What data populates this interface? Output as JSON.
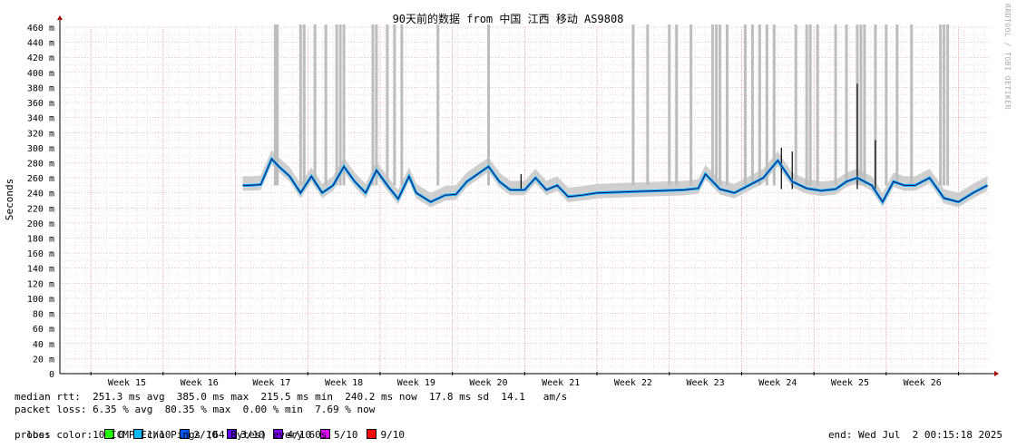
{
  "chart_data": {
    "type": "line",
    "title": "90天前的数据 from 中国 江西 移动 AS9808",
    "ylabel": "Seconds",
    "xlabel": "",
    "ylim": [
      0,
      460
    ],
    "y_unit": "m",
    "y_ticks": [
      0,
      20,
      40,
      60,
      80,
      100,
      120,
      140,
      160,
      180,
      200,
      220,
      240,
      260,
      280,
      300,
      320,
      340,
      360,
      380,
      400,
      420,
      440,
      460
    ],
    "x_ticks": [
      "Week 15",
      "Week 16",
      "Week 17",
      "Week 18",
      "Week 19",
      "Week 20",
      "Week 21",
      "Week 22",
      "Week 23",
      "Week 24",
      "Week 25",
      "Week 26"
    ],
    "grid": true,
    "series": [
      {
        "name": "median rtt",
        "x_week": [
          16.6,
          16.7,
          16.85,
          17.0,
          17.1,
          17.25,
          17.4,
          17.55,
          17.7,
          17.85,
          18.0,
          18.15,
          18.3,
          18.45,
          18.6,
          18.75,
          18.9,
          19.0,
          19.2,
          19.4,
          19.55,
          19.7,
          19.85,
          20.0,
          20.15,
          20.3,
          20.5,
          20.65,
          20.8,
          20.95,
          21.1,
          21.3,
          21.5,
          21.8,
          22.1,
          22.4,
          22.7,
          22.9,
          23.0,
          23.2,
          23.4,
          23.6,
          23.8,
          24.0,
          24.2,
          24.4,
          24.6,
          24.8,
          24.95,
          25.1,
          25.3,
          25.45,
          25.6,
          25.75,
          25.9,
          26.1,
          26.3,
          26.5,
          26.7,
          26.9
        ],
        "y_ms": [
          250,
          250,
          251,
          285,
          275,
          262,
          240,
          262,
          240,
          250,
          275,
          255,
          240,
          270,
          250,
          232,
          262,
          240,
          228,
          237,
          238,
          255,
          265,
          275,
          255,
          244,
          244,
          260,
          244,
          250,
          235,
          237,
          240,
          241,
          242,
          243,
          244,
          246,
          265,
          245,
          240,
          250,
          260,
          283,
          255,
          246,
          243,
          245,
          255,
          260,
          250,
          228,
          255,
          250,
          250,
          260,
          233,
          228,
          240,
          250
        ]
      }
    ],
    "spikes_ms": [
      {
        "x_week": 24.05,
        "y": 300
      },
      {
        "x_week": 25.1,
        "y": 385
      },
      {
        "x_week": 25.35,
        "y": 310
      },
      {
        "x_week": 24.2,
        "y": 295
      },
      {
        "x_week": 20.45,
        "y": 265
      }
    ],
    "loss_spikes_x_week": [
      17.05,
      17.08,
      17.4,
      17.45,
      17.6,
      17.75,
      17.9,
      17.95,
      18.0,
      18.4,
      18.45,
      18.6,
      18.7,
      18.8,
      19.3,
      20.0,
      22.0,
      22.2,
      22.5,
      22.6,
      22.8,
      23.1,
      23.15,
      23.2,
      23.3,
      23.55,
      23.65,
      23.75,
      23.85,
      23.95,
      24.25,
      24.4,
      24.45,
      24.55,
      24.8,
      24.95,
      25.1,
      25.15,
      25.2,
      25.35,
      25.5,
      25.65,
      25.85,
      26.25,
      26.3,
      26.35
    ]
  },
  "legend": {
    "median_rtt": "median rtt:  251.3 ms avg  385.0 ms max  215.5 ms min  240.2 ms now  17.8 ms sd  14.1   am/s",
    "packet_loss": "packet loss: 6.35 % avg  80.35 % max  0.00 % min  7.69 % now",
    "loss_color_label": "loss color:  ",
    "loss_colors": [
      {
        "label": "0",
        "color": "#26ff00"
      },
      {
        "label": "1/10",
        "color": "#00b8ff"
      },
      {
        "label": "2/10",
        "color": "#0059ff"
      },
      {
        "label": "3/10",
        "color": "#5e00ff"
      },
      {
        "label": "4/10",
        "color": "#7e00ff"
      },
      {
        "label": "5/10",
        "color": "#dd00ff"
      },
      {
        "label": "9/10",
        "color": "#ff0000"
      }
    ],
    "probe": "probe:       10 ICMP Echo Pings (64 Bytes) every 60s",
    "end": "end: Wed Jul  2 00:15:18 2025"
  },
  "credit": "RRDTOOL / TOBI OETIKER"
}
